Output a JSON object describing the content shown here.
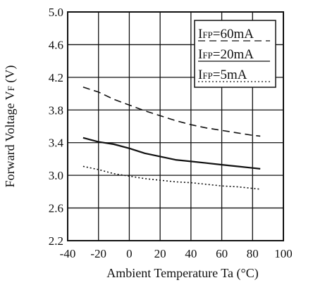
{
  "chart_data": {
    "type": "line",
    "xlabel": "Ambient Temperature Ta (°C)",
    "ylabel_main": "Forward Voltage V",
    "ylabel_sub": "F",
    "ylabel_unit": " (V)",
    "xlim": [
      -40,
      100
    ],
    "ylim": [
      2.2,
      5.0
    ],
    "xticks": [
      -40,
      -20,
      0,
      20,
      40,
      60,
      80,
      100
    ],
    "yticks": [
      2.2,
      2.6,
      3.0,
      3.4,
      3.8,
      4.2,
      4.6,
      5.0
    ],
    "grid": true,
    "legend_position": "top-right",
    "series": [
      {
        "name": "IFP=60mA",
        "label_main": "I",
        "label_sub": "FP",
        "label_value": "=60mA",
        "style": "dashed",
        "x": [
          -30,
          -20,
          -10,
          0,
          10,
          20,
          30,
          40,
          50,
          60,
          70,
          80,
          85
        ],
        "y": [
          4.08,
          4.02,
          3.93,
          3.86,
          3.79,
          3.73,
          3.67,
          3.62,
          3.58,
          3.55,
          3.52,
          3.49,
          3.48
        ]
      },
      {
        "name": "IFP=20mA",
        "label_main": "I",
        "label_sub": "FP",
        "label_value": "=20mA",
        "style": "solid",
        "x": [
          -30,
          -20,
          -10,
          0,
          10,
          20,
          30,
          40,
          50,
          60,
          70,
          80,
          85
        ],
        "y": [
          3.46,
          3.41,
          3.38,
          3.33,
          3.27,
          3.23,
          3.19,
          3.17,
          3.15,
          3.13,
          3.11,
          3.09,
          3.08
        ]
      },
      {
        "name": "IFP=5mA",
        "label_main": "I",
        "label_sub": "FP",
        "label_value": "=5mA",
        "style": "dotted",
        "x": [
          -30,
          -20,
          -10,
          0,
          10,
          20,
          30,
          40,
          50,
          60,
          70,
          80,
          85
        ],
        "y": [
          3.11,
          3.07,
          3.02,
          2.99,
          2.96,
          2.94,
          2.92,
          2.91,
          2.89,
          2.87,
          2.86,
          2.84,
          2.83
        ]
      }
    ]
  }
}
